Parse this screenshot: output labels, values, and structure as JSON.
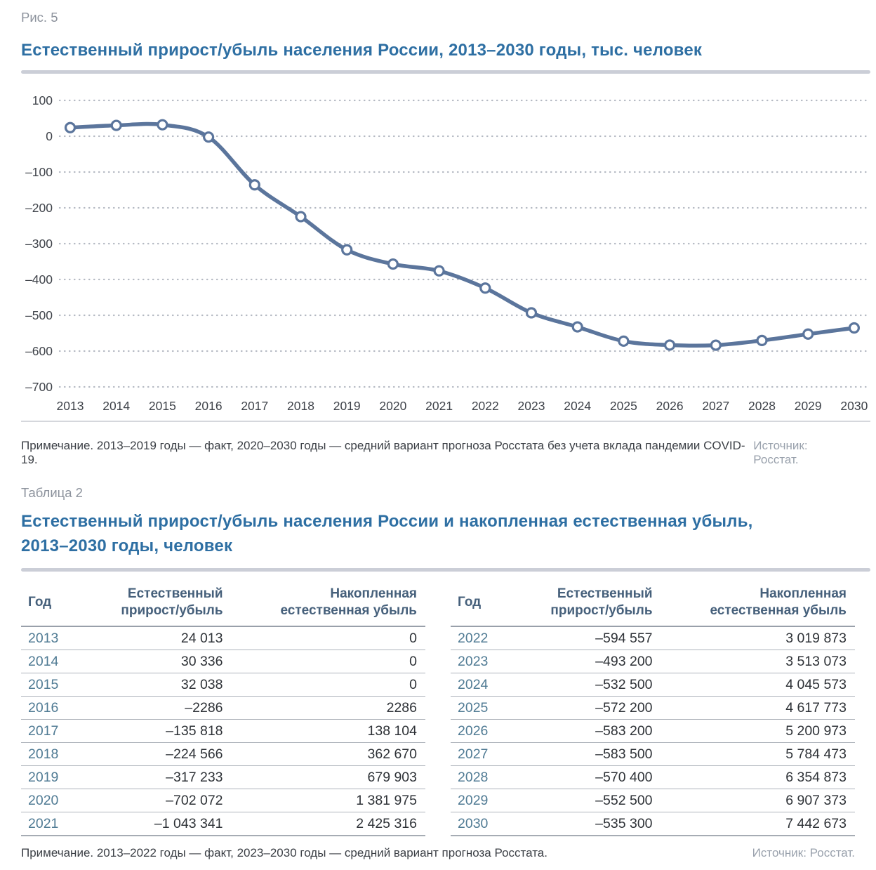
{
  "figure": {
    "label": "Рис. 5",
    "title": "Естественный прирост/убыль населения России, 2013–2030 годы, тыс. человек",
    "note": "Примечание. 2013–2019 годы — факт, 2020–2030 годы — средний вариант прогноза Росстата без учета вклада пандемии COVID-19.",
    "source": "Источник: Росстат."
  },
  "chart_data": {
    "type": "line",
    "title": "Естественный прирост/убыль населения России, 2013–2030 годы, тыс. человек",
    "x": [
      "2013",
      "2014",
      "2015",
      "2016",
      "2017",
      "2018",
      "2019",
      "2020",
      "2021",
      "2022",
      "2023",
      "2024",
      "2025",
      "2026",
      "2027",
      "2028",
      "2029",
      "2030"
    ],
    "values": [
      24.0,
      30.3,
      32.0,
      -2.3,
      -135.8,
      -224.6,
      -317.2,
      -357,
      -376,
      -424,
      -493.2,
      -532.5,
      -572.2,
      -583.2,
      -583.5,
      -570.4,
      -552.5,
      -535.3
    ],
    "xlabel": "",
    "ylabel": "тыс. человек",
    "ylim": [
      -700,
      100
    ],
    "yticks": [
      100,
      0,
      -100,
      -200,
      -300,
      -400,
      -500,
      -600,
      -700
    ],
    "grid": "horizontal-dotted",
    "legend": "none",
    "line_color": "#5b759c",
    "marker": "circle-white-fill"
  },
  "table_section": {
    "label": "Таблица 2",
    "title_line1": "Естественный прирост/убыль населения России и накопленная естественная убыль,",
    "title_line2": "2013–2030 годы, человек",
    "columns": [
      [
        "Год"
      ],
      [
        "Естественный",
        "прирост/убыль"
      ],
      [
        "Накопленная",
        "естественная убыль"
      ]
    ],
    "left_rows": [
      [
        "2013",
        "24 013",
        "0"
      ],
      [
        "2014",
        "30 336",
        "0"
      ],
      [
        "2015",
        "32 038",
        "0"
      ],
      [
        "2016",
        "–2286",
        "2286"
      ],
      [
        "2017",
        "–135 818",
        "138 104"
      ],
      [
        "2018",
        "–224 566",
        "362 670"
      ],
      [
        "2019",
        "–317 233",
        "679 903"
      ],
      [
        "2020",
        "–702 072",
        "1 381 975"
      ],
      [
        "2021",
        "–1 043 341",
        "2 425 316"
      ]
    ],
    "right_rows": [
      [
        "2022",
        "–594 557",
        "3 019 873"
      ],
      [
        "2023",
        "–493 200",
        "3 513 073"
      ],
      [
        "2024",
        "–532 500",
        "4 045 573"
      ],
      [
        "2025",
        "–572 200",
        "4 617 773"
      ],
      [
        "2026",
        "–583 200",
        "5 200 973"
      ],
      [
        "2027",
        "–583 500",
        "5 784 473"
      ],
      [
        "2028",
        "–570 400",
        "6 354 873"
      ],
      [
        "2029",
        "–552 500",
        "6 907 373"
      ],
      [
        "2030",
        "–535 300",
        "7 442 673"
      ]
    ],
    "note": "Примечание. 2013–2022 годы — факт, 2023–2030 годы — средний вариант прогноза Росстата.",
    "source": "Источник: Росстат."
  },
  "colors": {
    "accent_blue": "#2e6fa3",
    "line_blue": "#5b759c",
    "header_navy": "#46607b",
    "year_steel": "#507b94",
    "grid_dot": "#b4b9c2",
    "divider_gray": "#cbced7",
    "muted_gray": "#8d939d",
    "source_gray": "#99a1ac"
  }
}
